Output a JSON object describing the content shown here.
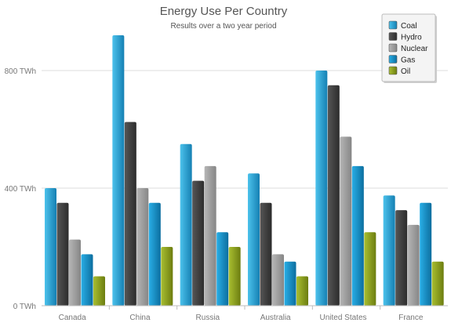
{
  "chart_data": {
    "type": "bar",
    "title": "Energy Use Per Country",
    "subtitle": "Results over a two year period",
    "xlabel": "",
    "ylabel": "",
    "categories": [
      "Canada",
      "China",
      "Russia",
      "Australia",
      "United States",
      "France"
    ],
    "series": [
      {
        "name": "Coal",
        "values": [
          400,
          920,
          550,
          450,
          800,
          375
        ]
      },
      {
        "name": "Hydro",
        "values": [
          350,
          625,
          425,
          350,
          750,
          325
        ]
      },
      {
        "name": "Nuclear",
        "values": [
          225,
          400,
          475,
          175,
          575,
          275
        ]
      },
      {
        "name": "Gas",
        "values": [
          175,
          350,
          250,
          150,
          475,
          350
        ]
      },
      {
        "name": "Oil",
        "values": [
          100,
          200,
          200,
          100,
          250,
          150
        ]
      }
    ],
    "ylim": [
      0,
      1000
    ],
    "yticks": [
      0,
      400,
      800
    ],
    "ytick_labels": [
      "0 TWh",
      "400 TWh",
      "800 TWh"
    ],
    "grid": true,
    "legend_position": "top-right"
  },
  "colors": {
    "Coal": {
      "light": "#4cc2ec",
      "dark": "#1580b3"
    },
    "Hydro": {
      "light": "#565656",
      "dark": "#2c2c2c"
    },
    "Nuclear": {
      "light": "#b6b6b6",
      "dark": "#868686"
    },
    "Gas": {
      "light": "#29aee6",
      "dark": "#0c6e9f"
    },
    "Oil": {
      "light": "#a9bf31",
      "dark": "#6c7d10"
    }
  }
}
